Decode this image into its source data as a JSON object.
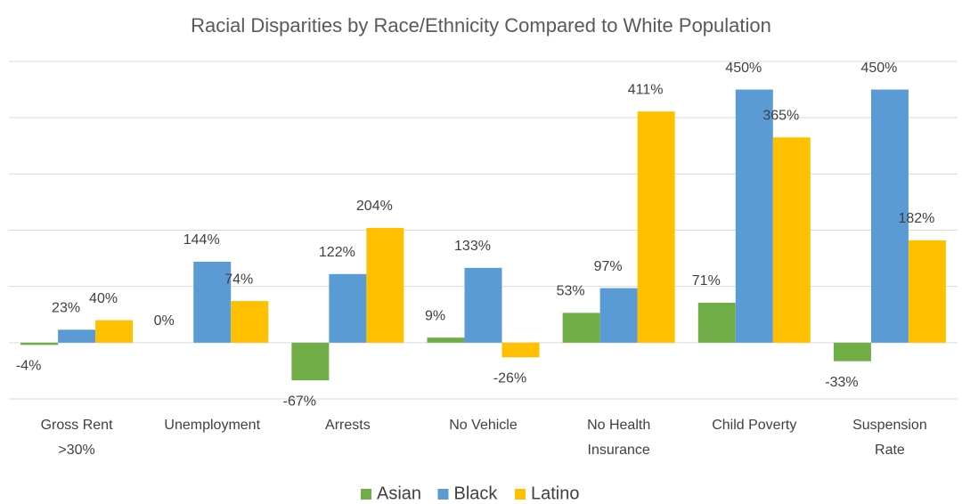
{
  "chart_data": {
    "type": "bar",
    "title": "Racial Disparities by Race/Ethnicity Compared to White Population",
    "categories": [
      "Gross Rent\n>30%",
      "Unemployment",
      "Arrests",
      "No Vehicle",
      "No Health\nInsurance",
      "Child Poverty",
      "Suspension\nRate"
    ],
    "series": [
      {
        "name": "Asian",
        "color": "#70ad47",
        "values": [
          -4,
          0,
          -67,
          9,
          53,
          71,
          -33
        ],
        "value_labels": [
          "-4%",
          "0%",
          "-67%",
          "9%",
          "53%",
          "71%",
          "-33%"
        ]
      },
      {
        "name": "Black",
        "color": "#5b9bd5",
        "values": [
          23,
          144,
          122,
          133,
          97,
          450,
          450
        ],
        "value_labels": [
          "23%",
          "144%",
          "122%",
          "133%",
          "97%",
          "450%",
          "450%"
        ]
      },
      {
        "name": "Latino",
        "color": "#ffc000",
        "values": [
          40,
          74,
          204,
          -26,
          411,
          365,
          182
        ],
        "value_labels": [
          "40%",
          "74%",
          "204%",
          "-26%",
          "411%",
          "365%",
          "182%"
        ]
      }
    ],
    "ylim": [
      -100,
      500
    ],
    "yticks": [
      -100,
      0,
      100,
      200,
      300,
      400,
      500
    ],
    "grid": true,
    "legend": "bottom"
  }
}
